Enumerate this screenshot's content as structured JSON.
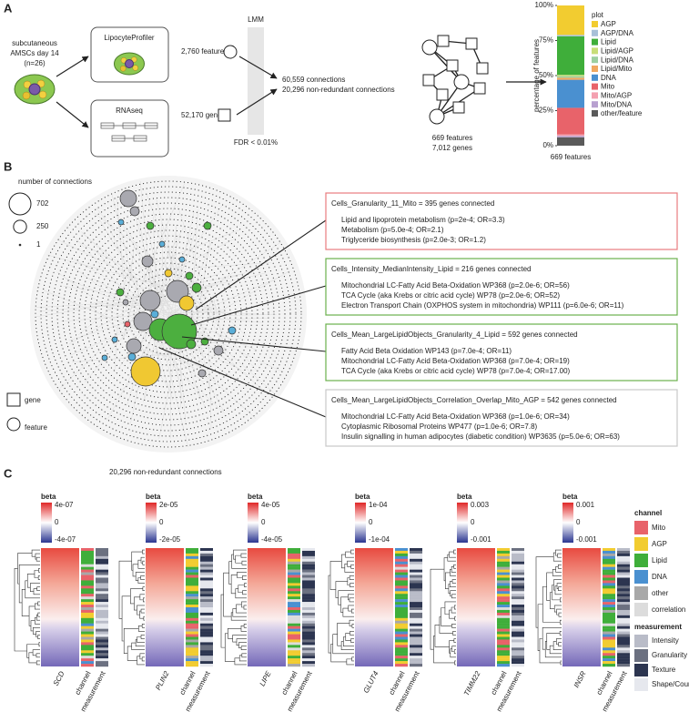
{
  "panel_a": {
    "label": "A",
    "source": [
      "subcutaneous",
      "AMSCs day 14",
      "(n=26)"
    ],
    "profiler": "LipocyteProfiler",
    "rnaseq": "RNAseq",
    "features": "2,760 features",
    "genes": "52,170 genes",
    "lmm": "LMM",
    "fdr": "FDR < 0.01%",
    "connections": [
      "60,559 connections",
      "20,296 non-redundant connections"
    ],
    "network": [
      "669 features",
      "7,012 genes"
    ]
  },
  "chart_data": {
    "type": "stacked_bar",
    "categories": [
      "669 features"
    ],
    "ylabel": "percentage of features",
    "legend_title": "plot",
    "series": [
      {
        "name": "AGP",
        "color": "#f2cc30",
        "values": [
          21
        ]
      },
      {
        "name": "AGP/DNA",
        "color": "#a8c0d8",
        "values": [
          1
        ]
      },
      {
        "name": "Lipid",
        "color": "#3fae3a",
        "values": [
          27.5
        ]
      },
      {
        "name": "Lipid/AGP",
        "color": "#c8de78",
        "values": [
          1
        ]
      },
      {
        "name": "Lipid/DNA",
        "color": "#9ccfa0",
        "values": [
          1
        ]
      },
      {
        "name": "Lipid/Mito",
        "color": "#f0a860",
        "values": [
          1.5
        ]
      },
      {
        "name": "DNA",
        "color": "#4a90d0",
        "values": [
          20
        ]
      },
      {
        "name": "Mito",
        "color": "#e8636a",
        "values": [
          19
        ]
      },
      {
        "name": "Mito/AGP",
        "color": "#f4a0b0",
        "values": [
          1
        ]
      },
      {
        "name": "Mito/DNA",
        "color": "#b8a0d0",
        "values": [
          1
        ]
      },
      {
        "name": "other/feature",
        "color": "#5a5a5a",
        "values": [
          6
        ]
      }
    ],
    "ylim": [
      0,
      100
    ],
    "yticks": [
      {
        "value": 0,
        "label": "0%"
      },
      {
        "value": 25,
        "label": "25%"
      },
      {
        "value": 50,
        "label": "50%"
      },
      {
        "value": 75,
        "label": "75%"
      },
      {
        "value": 100,
        "label": "100%"
      }
    ]
  },
  "panel_b": {
    "label": "B",
    "size_legend": {
      "title": "number of connections",
      "sizes": [
        702,
        250,
        1
      ]
    },
    "shape_legend": [
      "gene",
      "feature"
    ],
    "footer": "20,296 non-redundant connections",
    "boxes": [
      {
        "title": "Cells_Granularity_11_Mito = 395 genes connected",
        "color": "#e87c7e",
        "lines": [
          "Lipid and lipoprotein metabolism (p=2e-4; OR=3.3)",
          "Metabolism (p=5.0e-4; OR=2.1)",
          "Triglyceride biosynthesis (p=2.0e-3; OR=1.2)"
        ]
      },
      {
        "title": "Cells_Intensity_MedianIntensity_Lipid = 216 genes connected",
        "color": "#6ab04c",
        "lines": [
          "Mitochondrial LC-Fatty Acid Beta-Oxidation WP368 (p=2.0e-6; OR=56)",
          "TCA Cycle (aka Krebs or citric acid cycle) WP78 (p=2.0e-6; OR=52)",
          "Electron Transport Chain (OXPHOS system in mitochondria) WP111 (p=6.0e-6; OR=11)"
        ]
      },
      {
        "title": "Cells_Mean_LargeLipidObjects_Granularity_4_Lipid = 592 genes connected",
        "color": "#6ab04c",
        "lines": [
          "Fatty Acid Beta Oxidation WP143 (p=7.0e-4; OR=11)",
          "Mitochondrial LC-Fatty Acid Beta-Oxidation WP368 (p=7.0e-4; OR=19)",
          "TCA Cycle (aka Krebs or citric acid cycle) WP78 (p=7.0e-4; OR=17.00)"
        ]
      },
      {
        "title": "Cells_Mean_LargeLipidObjects_Correlation_Overlap_Mito_AGP = 542 genes connected",
        "color": "#c8c8c8",
        "lines": [
          "Mitochondrial LC-Fatty Acid Beta-Oxidation WP368 (p=1.0e-6; OR=34)",
          "Cytoplasmic Ribosomal Proteins WP477 (p=1.0e-6; OR=7.8)",
          "Insulin signalling in human adipocytes (diabetic condition) WP3635 (p=5.0e-6; OR=63)"
        ]
      }
    ]
  },
  "panel_c": {
    "label": "C",
    "beta_title": "beta",
    "columns": [
      "channel",
      "measurement"
    ],
    "genes": [
      {
        "name": "SCD",
        "ticks": [
          "4e-07",
          "0",
          "-4e-07"
        ]
      },
      {
        "name": "PLIN2",
        "ticks": [
          "2e-05",
          "0",
          "-2e-05"
        ]
      },
      {
        "name": "LIPE",
        "ticks": [
          "4e-05",
          "0",
          "-4e-05"
        ]
      },
      {
        "name": "GLUT4",
        "ticks": [
          "1e-04",
          "0",
          "-1e-04"
        ]
      },
      {
        "name": "TIMM22",
        "ticks": [
          "0.003",
          "0",
          "-0.001"
        ]
      },
      {
        "name": "INSR",
        "ticks": [
          "0.001",
          "0",
          "-0.001"
        ]
      }
    ],
    "channel_legend": {
      "title": "channel",
      "items": [
        {
          "name": "Mito",
          "color": "#e8636a"
        },
        {
          "name": "AGP",
          "color": "#f2cc30"
        },
        {
          "name": "Lipid",
          "color": "#3fae3a"
        },
        {
          "name": "DNA",
          "color": "#4a90d0"
        },
        {
          "name": "other",
          "color": "#a8a8a8"
        },
        {
          "name": "correlation",
          "color": "#dcdcdc"
        }
      ]
    },
    "measurement_legend": {
      "title": "measurement",
      "items": [
        {
          "name": "Intensity",
          "color": "#b9bcc8"
        },
        {
          "name": "Granularity",
          "color": "#6b7080"
        },
        {
          "name": "Texture",
          "color": "#2c3550"
        },
        {
          "name": "Shape/Count",
          "color": "#e6e8ee"
        }
      ]
    }
  }
}
